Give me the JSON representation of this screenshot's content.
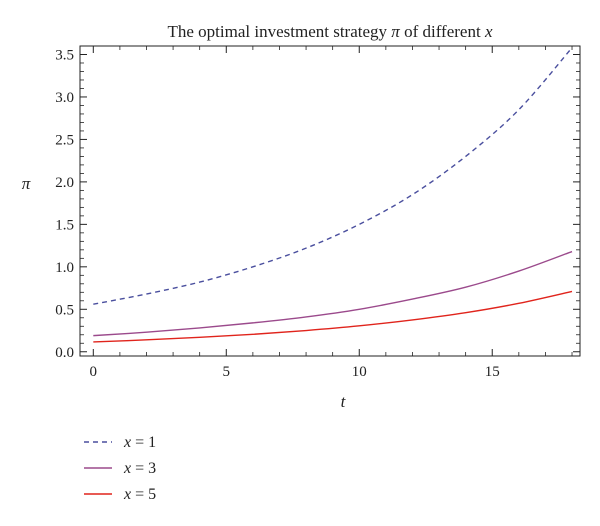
{
  "chart_data": {
    "type": "line",
    "title": "The optimal investment strategy π of different x",
    "title_parts": {
      "before": "The optimal investment strategy ",
      "symbol": "π",
      "middle": " of different ",
      "variable": "x"
    },
    "xlabel": "t",
    "ylabel": "π",
    "xlim": [
      -0.5,
      18.3
    ],
    "ylim": [
      -0.05,
      3.6
    ],
    "xticks": [
      0,
      5,
      10,
      15
    ],
    "xtick_labels": [
      "0",
      "5",
      "10",
      "15"
    ],
    "yticks": [
      0.0,
      0.5,
      1.0,
      1.5,
      2.0,
      2.5,
      3.0,
      3.5
    ],
    "ytick_labels": [
      "0.0",
      "0.5",
      "1.0",
      "1.5",
      "2.0",
      "2.5",
      "3.0",
      "3.5"
    ],
    "grid": false,
    "legend_position": "bottom-left",
    "x": [
      0,
      2,
      4,
      6,
      8,
      10,
      12,
      14,
      16,
      18
    ],
    "series": [
      {
        "name": "x = 1",
        "var": "x",
        "value": "1",
        "style": "dashed",
        "color": "#4a4f9e",
        "values": [
          0.56,
          0.68,
          0.82,
          1.0,
          1.22,
          1.5,
          1.85,
          2.3,
          2.85,
          3.58
        ]
      },
      {
        "name": "x = 3",
        "var": "x",
        "value": "3",
        "style": "solid",
        "color": "#9b4a8c",
        "values": [
          0.19,
          0.23,
          0.28,
          0.34,
          0.41,
          0.5,
          0.62,
          0.76,
          0.95,
          1.18
        ]
      },
      {
        "name": "x = 5",
        "var": "x",
        "value": "5",
        "style": "solid",
        "color": "#e0241c",
        "values": [
          0.115,
          0.14,
          0.17,
          0.205,
          0.25,
          0.305,
          0.375,
          0.46,
          0.57,
          0.71
        ]
      }
    ]
  }
}
